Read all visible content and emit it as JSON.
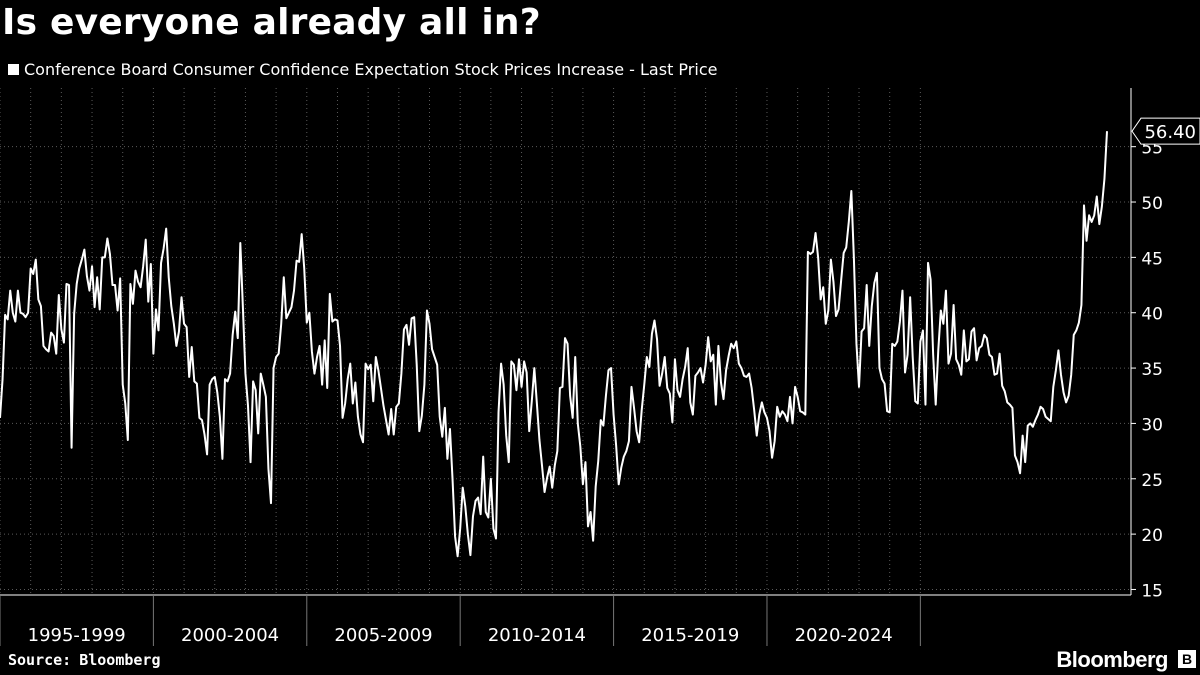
{
  "header": {
    "title": "Is everyone already all in?",
    "legend_label": "Conference Board Consumer Confidence Expectation Stock Prices Increase - Last Price"
  },
  "footer": {
    "source_label": "Source:",
    "source_value": "Bloomberg",
    "brand": "Bloomberg"
  },
  "colors": {
    "background": "#000000",
    "line": "#ffffff",
    "text": "#ffffff"
  },
  "chart_data": {
    "type": "line",
    "title": "Is everyone already all in?",
    "series": [
      {
        "name": "Conference Board Consumer Confidence Expectation Stock Prices Increase - Last Price",
        "start": "1995-01",
        "frequency": "monthly",
        "values": [
          30.5,
          34.0,
          39.8,
          39.4,
          42.0,
          40.0,
          39.2,
          42.0,
          40.0,
          39.9,
          39.6,
          40.0,
          44.0,
          43.5,
          44.8,
          41.2,
          40.6,
          37.0,
          36.7,
          36.5,
          38.2,
          37.9,
          36.3,
          41.6,
          38.5,
          37.3,
          42.6,
          42.5,
          27.8,
          39.9,
          42.6,
          44.0,
          44.8,
          45.7,
          43.3,
          42.0,
          44.2,
          40.5,
          43.2,
          40.3,
          45.0,
          45.0,
          46.7,
          45.3,
          42.5,
          42.5,
          40.2,
          43.1,
          33.5,
          31.8,
          28.5,
          42.6,
          40.8,
          43.8,
          42.8,
          42.3,
          44.2,
          46.6,
          41.0,
          44.4,
          36.3,
          40.3,
          38.4,
          44.5,
          45.8,
          47.6,
          43.2,
          40.6,
          39.0,
          37.0,
          38.3,
          41.4,
          39.0,
          38.7,
          34.2,
          36.9,
          33.8,
          33.6,
          30.5,
          30.3,
          29.0,
          27.2,
          33.5,
          34.0,
          34.2,
          32.8,
          30.6,
          26.8,
          34.0,
          33.8,
          34.5,
          38.0,
          40.1,
          37.7,
          46.3,
          40.5,
          34.5,
          31.6,
          26.5,
          33.8,
          33.0,
          29.1,
          34.5,
          33.5,
          32.4,
          25.9,
          22.8,
          35.0,
          36.0,
          36.3,
          39.0,
          43.2,
          39.5,
          40.0,
          40.5,
          42.0,
          44.7,
          44.6,
          47.1,
          44.0,
          39.1,
          40.0,
          36.5,
          34.5,
          36.0,
          37.0,
          33.5,
          37.5,
          33.2,
          41.7,
          39.2,
          39.4,
          39.3,
          37.0,
          30.5,
          31.8,
          34.0,
          35.4,
          31.8,
          33.7,
          30.6,
          29.0,
          28.3,
          35.4,
          34.9,
          35.3,
          32.0,
          36.0,
          34.8,
          33.2,
          31.6,
          30.3,
          29.0,
          31.3,
          29.0,
          31.5,
          31.8,
          34.5,
          38.5,
          38.9,
          37.1,
          39.5,
          39.6,
          35.3,
          29.3,
          30.7,
          33.5,
          40.2,
          39.0,
          36.7,
          36.0,
          35.3,
          30.6,
          28.8,
          31.4,
          26.8,
          29.5,
          25.0,
          19.8,
          18.0,
          20.5,
          24.2,
          22.5,
          20.0,
          18.1,
          21.6,
          23.0,
          23.3,
          21.8,
          27.0,
          22.0,
          21.5,
          25.0,
          20.5,
          19.6,
          31.0,
          35.4,
          33.5,
          28.9,
          26.5,
          35.6,
          35.3,
          33.0,
          35.8,
          33.3,
          35.6,
          34.6,
          29.3,
          32.0,
          35.0,
          31.8,
          28.5,
          26.2,
          23.8,
          25.1,
          26.1,
          24.2,
          26.2,
          27.5,
          33.2,
          33.3,
          37.7,
          37.2,
          32.5,
          30.5,
          36.0,
          30.0,
          27.9,
          24.5,
          26.5,
          20.7,
          22.0,
          19.4,
          24.3,
          26.6,
          30.3,
          29.8,
          32.5,
          34.8,
          35.0,
          30.8,
          28.0,
          24.5,
          26.0,
          27.0,
          27.5,
          28.4,
          33.3,
          31.4,
          29.3,
          28.3,
          31.2,
          33.5,
          36.0,
          35.1,
          38.1,
          39.3,
          37.6,
          33.4,
          34.5,
          36.0,
          33.2,
          32.7,
          30.1,
          35.8,
          33.0,
          32.4,
          34.0,
          35.1,
          36.8,
          31.9,
          30.8,
          34.3,
          34.6,
          35.0,
          33.7,
          35.3,
          37.8,
          35.6,
          36.2,
          31.7,
          37.0,
          33.7,
          32.2,
          34.8,
          36.1,
          37.2,
          36.8,
          37.4,
          35.4,
          35.0,
          34.3,
          34.2,
          34.5,
          33.2,
          31.2,
          28.9,
          30.8,
          31.9,
          31.0,
          30.5,
          29.3,
          26.9,
          28.4,
          31.5,
          30.6,
          31.1,
          30.8,
          30.2,
          32.4,
          30.0,
          33.3,
          32.4,
          31.1,
          31.0,
          30.8,
          45.5,
          45.3,
          45.5,
          47.2,
          45.0,
          41.2,
          42.3,
          39.0,
          40.2,
          44.8,
          42.8,
          39.7,
          40.3,
          42.9,
          45.4,
          45.9,
          48.2,
          51.0,
          44.9,
          37.2,
          33.3,
          38.3,
          38.6,
          42.5,
          37.0,
          40.6,
          42.7,
          43.6,
          35.0,
          34.0,
          33.6,
          31.1,
          31.0,
          37.2,
          37.0,
          37.4,
          39.2,
          42.0,
          34.6,
          36.2,
          41.4,
          36.0,
          32.0,
          31.8,
          37.4,
          38.4,
          31.7,
          44.5,
          43.0,
          36.2,
          31.7,
          36.6,
          40.2,
          39.0,
          42.0,
          35.4,
          36.3,
          40.7,
          35.8,
          35.3,
          34.4,
          38.4,
          35.6,
          35.8,
          38.3,
          38.6,
          35.7,
          36.8,
          37.0,
          38.0,
          37.7,
          36.2,
          36.0,
          34.4,
          34.5,
          36.3,
          33.4,
          32.9,
          31.9,
          31.7,
          31.4,
          27.1,
          26.5,
          25.5,
          28.9,
          26.5,
          29.8,
          30.0,
          29.7,
          30.3,
          30.8,
          31.5,
          31.3,
          30.6,
          30.4,
          30.2,
          33.3,
          34.8,
          36.6,
          34.4,
          32.8,
          31.9,
          32.5,
          34.4,
          38.0,
          38.4,
          39.1,
          40.7,
          49.7,
          46.5,
          48.8,
          48.2,
          48.8,
          50.5,
          48.0,
          49.6,
          52.1,
          56.4
        ]
      }
    ],
    "x_tick_labels": [
      "1995-1999",
      "2000-2004",
      "2005-2009",
      "2010-2014",
      "2015-2019",
      "2020-2024"
    ],
    "y_ticks": [
      15,
      20,
      25,
      30,
      35,
      40,
      45,
      50,
      55
    ],
    "ylim": [
      14.5,
      60.3
    ],
    "last_value_label": "56.40",
    "last_value": 56.4,
    "grid": true,
    "legend_position": "top-left",
    "xlabel": "",
    "ylabel": ""
  }
}
